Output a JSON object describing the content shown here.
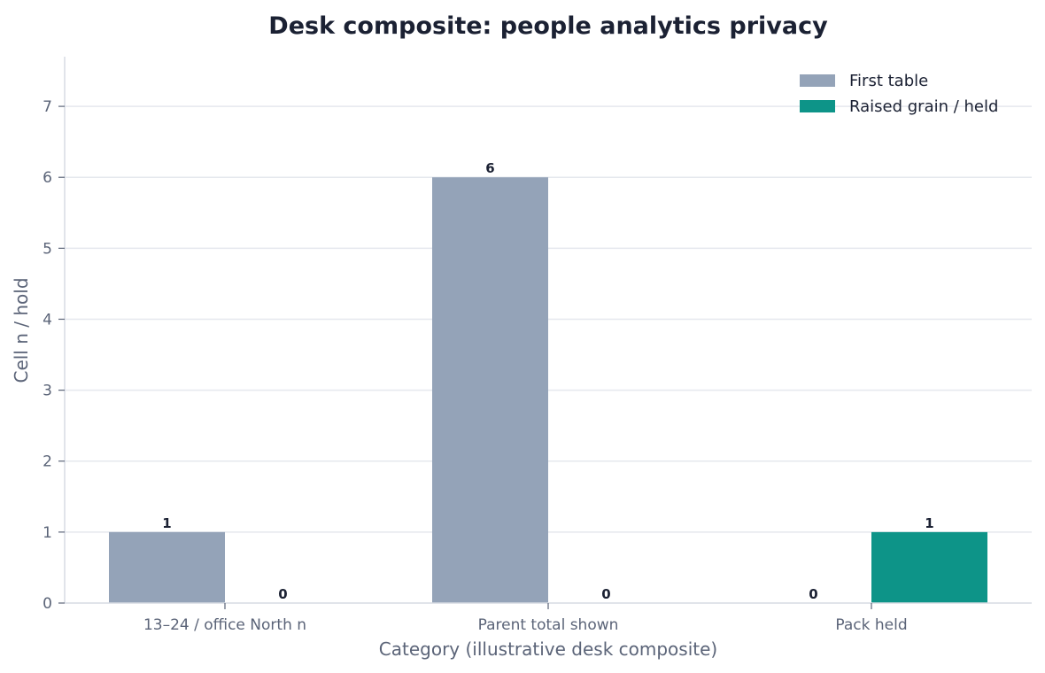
{
  "chart_data": {
    "type": "bar",
    "title": "Desk composite: people analytics privacy",
    "xlabel": "Category (illustrative desk composite)",
    "ylabel": "Cell n / hold",
    "categories": [
      "13–24 / office North n",
      "Parent total shown",
      "Pack held"
    ],
    "series": [
      {
        "name": "First table",
        "values": [
          1,
          6,
          0
        ],
        "color": "#94a3b8"
      },
      {
        "name": "Raised grain / held",
        "values": [
          0,
          0,
          1
        ],
        "color": "#0d9488"
      }
    ],
    "ylim": [
      0,
      7.7
    ],
    "yticks": [
      0,
      1,
      2,
      3,
      4,
      5,
      6,
      7
    ],
    "grid": "horizontal",
    "legend": "top-right",
    "data_labels": true
  }
}
